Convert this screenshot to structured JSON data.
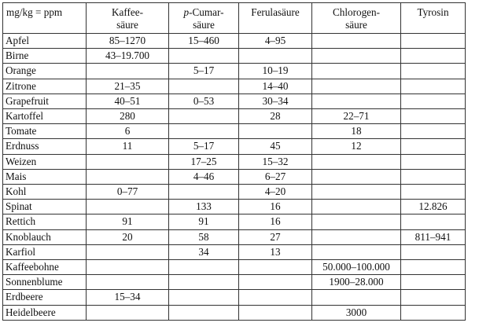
{
  "table": {
    "unit_header": "mg/kg = ppm",
    "columns": [
      {
        "prefix": "",
        "line1": "Kaffee-",
        "line2": "säure"
      },
      {
        "prefix": "p-",
        "line1": "Cumar-",
        "line2": "säure"
      },
      {
        "prefix": "",
        "line1": "Ferulasäure",
        "line2": ""
      },
      {
        "prefix": "",
        "line1": "Chlorogen-",
        "line2": "säure"
      },
      {
        "prefix": "",
        "line1": "Tyrosin",
        "line2": ""
      }
    ],
    "rows": [
      {
        "name": "Apfel",
        "values": [
          "85–1270",
          "15–460",
          "4–95",
          "",
          ""
        ]
      },
      {
        "name": "Birne",
        "values": [
          "43–19.700",
          "",
          "",
          "",
          ""
        ]
      },
      {
        "name": "Orange",
        "values": [
          "",
          "5–17",
          "10–19",
          "",
          ""
        ]
      },
      {
        "name": "Zitrone",
        "values": [
          "21–35",
          "",
          "14–40",
          "",
          ""
        ]
      },
      {
        "name": "Grapefruit",
        "values": [
          "40–51",
          "0–53",
          "30–34",
          "",
          ""
        ]
      },
      {
        "name": "Kartoffel",
        "values": [
          "280",
          "",
          "28",
          "22–71",
          ""
        ]
      },
      {
        "name": "Tomate",
        "values": [
          "6",
          "",
          "",
          "18",
          ""
        ]
      },
      {
        "name": "Erdnuss",
        "values": [
          "11",
          "5–17",
          "45",
          "12",
          ""
        ]
      },
      {
        "name": "Weizen",
        "values": [
          "",
          "17–25",
          "15–32",
          "",
          ""
        ]
      },
      {
        "name": "Mais",
        "values": [
          "",
          "4–46",
          "6–27",
          "",
          ""
        ]
      },
      {
        "name": "Kohl",
        "values": [
          "0–77",
          "",
          "4–20",
          "",
          ""
        ]
      },
      {
        "name": "Spinat",
        "values": [
          "",
          "133",
          "16",
          "",
          "12.826"
        ]
      },
      {
        "name": "Rettich",
        "values": [
          "91",
          "91",
          "16",
          "",
          ""
        ]
      },
      {
        "name": "Knoblauch",
        "values": [
          "20",
          "58",
          "27",
          "",
          "811–941"
        ]
      },
      {
        "name": "Karfiol",
        "values": [
          "",
          "34",
          "13",
          "",
          ""
        ]
      },
      {
        "name": "Kaffeebohne",
        "values": [
          "",
          "",
          "",
          "50.000–100.000",
          ""
        ]
      },
      {
        "name": "Sonnenblume",
        "values": [
          "",
          "",
          "",
          "1900–28.000",
          ""
        ]
      },
      {
        "name": "Erdbeere",
        "values": [
          "15–34",
          "",
          "",
          "",
          ""
        ]
      },
      {
        "name": "Heidelbeere",
        "values": [
          "",
          "",
          "",
          "3000",
          ""
        ]
      }
    ]
  }
}
